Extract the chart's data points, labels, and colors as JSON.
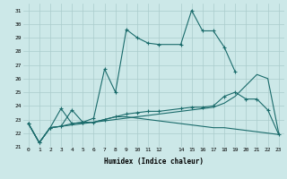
{
  "xlabel": "Humidex (Indice chaleur)",
  "bg_color": "#cce8e8",
  "grid_color": "#aacccc",
  "line_color": "#1a6b6b",
  "xlim": [
    -0.5,
    23.5
  ],
  "ylim": [
    21,
    31.5
  ],
  "xticks": [
    0,
    1,
    2,
    3,
    4,
    5,
    6,
    7,
    8,
    9,
    10,
    11,
    12,
    14,
    15,
    16,
    17,
    18,
    19,
    20,
    21,
    22,
    23
  ],
  "yticks": [
    21,
    22,
    23,
    24,
    25,
    26,
    27,
    28,
    29,
    30,
    31
  ],
  "line1_x": [
    0,
    1,
    2,
    3,
    4,
    5,
    6,
    7,
    8,
    9,
    10,
    11,
    12,
    14,
    15,
    16,
    17,
    18,
    19
  ],
  "line1_y": [
    22.7,
    21.3,
    22.4,
    22.5,
    23.7,
    22.8,
    23.1,
    26.7,
    25.0,
    29.6,
    29.0,
    28.6,
    28.5,
    28.5,
    31.0,
    29.5,
    29.5,
    28.3,
    26.5
  ],
  "line2_x": [
    0,
    1,
    2,
    3,
    4,
    5,
    6,
    7,
    8,
    9,
    10,
    11,
    12,
    14,
    15,
    16,
    17,
    18,
    19,
    20,
    21,
    22,
    23
  ],
  "line2_y": [
    22.7,
    21.3,
    22.4,
    23.8,
    22.7,
    22.8,
    22.8,
    23.0,
    23.2,
    23.4,
    23.5,
    23.6,
    23.6,
    23.8,
    23.9,
    23.9,
    24.0,
    24.7,
    25.0,
    24.5,
    24.5,
    23.7,
    21.9
  ],
  "line3_x": [
    0,
    1,
    2,
    3,
    4,
    5,
    6,
    7,
    8,
    9,
    10,
    11,
    12,
    14,
    15,
    16,
    17,
    18,
    19,
    20,
    21,
    22,
    23
  ],
  "line3_y": [
    22.7,
    21.3,
    22.4,
    22.5,
    22.6,
    22.7,
    22.8,
    22.9,
    23.0,
    23.1,
    23.2,
    23.3,
    23.4,
    23.6,
    23.7,
    23.8,
    23.9,
    24.2,
    24.7,
    25.5,
    26.3,
    26.0,
    22.0
  ],
  "line4_x": [
    0,
    1,
    2,
    3,
    4,
    5,
    6,
    7,
    8,
    9,
    10,
    11,
    12,
    14,
    15,
    16,
    17,
    18,
    19,
    20,
    21,
    22,
    23
  ],
  "line4_y": [
    22.7,
    21.3,
    22.4,
    22.5,
    22.7,
    22.8,
    22.8,
    23.0,
    23.2,
    23.2,
    23.1,
    23.0,
    22.9,
    22.7,
    22.6,
    22.5,
    22.4,
    22.4,
    22.3,
    22.2,
    22.1,
    22.0,
    21.9
  ]
}
